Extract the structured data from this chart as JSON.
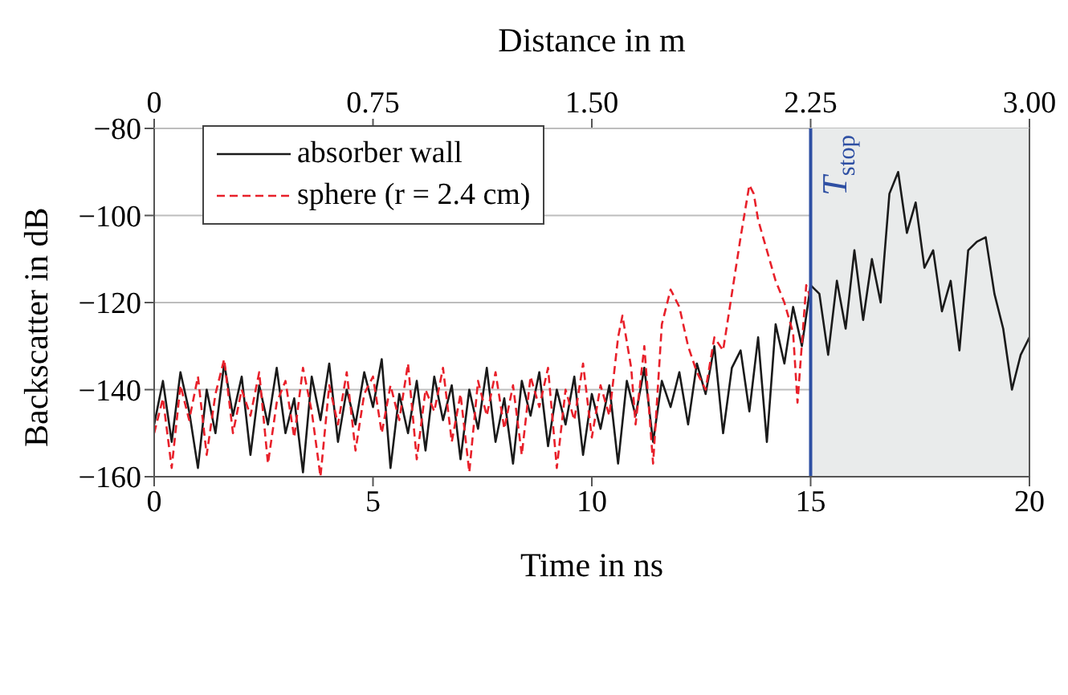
{
  "chart_data": {
    "type": "line",
    "xlabel": "Time in ns",
    "ylabel": "Backscatter in dB",
    "x2label": "Distance in m",
    "xlim": [
      0,
      20
    ],
    "xticks": [
      0,
      5,
      10,
      15,
      20
    ],
    "x2lim": [
      0,
      3
    ],
    "x2ticks": [
      0,
      0.75,
      {
        "value": 1.5,
        "label": "1.50"
      },
      2.25,
      {
        "value": 3,
        "label": "3.00"
      }
    ],
    "ylim": [
      -160,
      -80
    ],
    "yticks": [
      -160,
      -140,
      -120,
      -100,
      -80
    ],
    "grid": true,
    "legend": "top left",
    "marker": "none",
    "ref_lines": [
      {
        "axis": "x",
        "value": 15,
        "label": "T$_{stop}$",
        "color": "#2e4fa3"
      }
    ],
    "bands": [
      {
        "axis": "x",
        "from": 15,
        "to": 20,
        "color": "#e9ebeb"
      }
    ],
    "series": [
      {
        "name": "absorber wall",
        "color": "#1a1a1a",
        "line_style": "solid",
        "x": [
          0,
          0.2,
          0.4,
          0.6,
          0.8,
          1,
          1.2,
          1.4,
          1.6,
          1.8,
          2,
          2.2,
          2.4,
          2.6,
          2.8,
          3,
          3.2,
          3.4,
          3.6,
          3.8,
          4,
          4.2,
          4.4,
          4.6,
          4.8,
          5,
          5.2,
          5.4,
          5.6,
          5.8,
          6,
          6.2,
          6.4,
          6.6,
          6.8,
          7,
          7.2,
          7.4,
          7.6,
          7.8,
          8,
          8.2,
          8.4,
          8.6,
          8.8,
          9,
          9.2,
          9.4,
          9.6,
          9.8,
          10,
          10.2,
          10.4,
          10.6,
          10.8,
          11,
          11.2,
          11.4,
          11.6,
          11.8,
          12,
          12.2,
          12.4,
          12.6,
          12.8,
          13,
          13.2,
          13.4,
          13.6,
          13.8,
          14,
          14.2,
          14.4,
          14.6,
          14.8,
          15,
          15.2,
          15.4,
          15.6,
          15.8,
          16,
          16.2,
          16.4,
          16.6,
          16.8,
          17,
          17.2,
          17.4,
          17.6,
          17.8,
          18,
          18.2,
          18.4,
          18.6,
          18.8,
          19,
          19.2,
          19.4,
          19.6,
          19.8,
          20
        ],
        "values": [
          -148,
          -138,
          -152,
          -136,
          -145,
          -158,
          -140,
          -150,
          -134,
          -146,
          -137,
          -155,
          -139,
          -148,
          -135,
          -150,
          -142,
          -159,
          -137,
          -147,
          -134,
          -152,
          -140,
          -148,
          -136,
          -144,
          -133,
          -158,
          -141,
          -150,
          -138,
          -154,
          -137,
          -147,
          -139,
          -156,
          -140,
          -149,
          -135,
          -152,
          -142,
          -157,
          -138,
          -146,
          -136,
          -153,
          -140,
          -148,
          -137,
          -155,
          -141,
          -149,
          -139,
          -157,
          -138,
          -146,
          -135,
          -152,
          -138,
          -144,
          -136,
          -148,
          -134,
          -141,
          -130,
          -150,
          -135,
          -131,
          -145,
          -128,
          -152,
          -125,
          -134,
          -121,
          -130,
          -116,
          -118,
          -132,
          -115,
          -126,
          -108,
          -124,
          -110,
          -120,
          -95,
          -90,
          -104,
          -97,
          -112,
          -108,
          -122,
          -115,
          -131,
          -108,
          -106,
          -105,
          -118,
          -126,
          -140,
          -132,
          -128
        ]
      },
      {
        "name": "sphere (r = 2.4 cm)",
        "color": "#e8202a",
        "line_style": "dashed",
        "x": [
          0,
          0.2,
          0.4,
          0.6,
          0.8,
          1,
          1.2,
          1.4,
          1.6,
          1.8,
          2,
          2.2,
          2.4,
          2.6,
          2.8,
          3,
          3.2,
          3.4,
          3.6,
          3.8,
          4,
          4.2,
          4.4,
          4.6,
          4.8,
          5,
          5.2,
          5.4,
          5.6,
          5.8,
          6,
          6.2,
          6.4,
          6.6,
          6.8,
          7,
          7.2,
          7.4,
          7.6,
          7.8,
          8,
          8.2,
          8.4,
          8.6,
          8.8,
          9,
          9.2,
          9.4,
          9.6,
          9.8,
          10,
          10.2,
          10.4,
          10.6,
          10.7,
          10.9,
          11,
          11.2,
          11.4,
          11.6,
          11.8,
          12,
          12.2,
          12.4,
          12.6,
          12.8,
          13,
          13.2,
          13.4,
          13.6,
          13.7,
          13.8,
          14,
          14.2,
          14.4,
          14.6,
          14.7,
          14.9,
          15
        ],
        "values": [
          -150,
          -142,
          -158,
          -139,
          -147,
          -137,
          -155,
          -141,
          -133,
          -150,
          -140,
          -146,
          -136,
          -157,
          -143,
          -138,
          -151,
          -135,
          -145,
          -160,
          -139,
          -148,
          -136,
          -154,
          -141,
          -137,
          -150,
          -139,
          -147,
          -134,
          -156,
          -140,
          -145,
          -135,
          -152,
          -141,
          -159,
          -138,
          -146,
          -136,
          -149,
          -139,
          -155,
          -137,
          -144,
          -135,
          -158,
          -140,
          -147,
          -134,
          -151,
          -139,
          -146,
          -128,
          -123,
          -135,
          -148,
          -130,
          -157,
          -125,
          -117,
          -121,
          -130,
          -136,
          -140,
          -128,
          -131,
          -118,
          -105,
          -93,
          -95,
          -101,
          -108,
          -115,
          -120,
          -127,
          -143,
          -116,
          -119
        ]
      }
    ]
  }
}
